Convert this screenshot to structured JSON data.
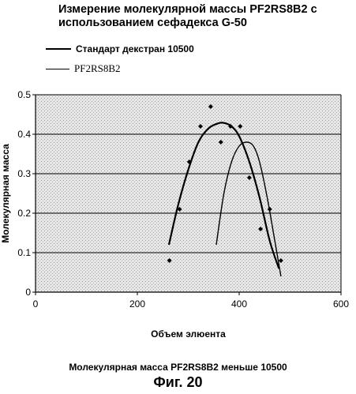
{
  "chart_data": {
    "type": "scatter",
    "title": "Измерение молекулярной массы PF2RS8B2 с\nиспользованием сефадекса G-50",
    "xlabel": "Объем элюента",
    "ylabel": "Молекулярная масса",
    "xlim": [
      0,
      600
    ],
    "ylim": [
      0,
      0.5
    ],
    "xticks": [
      0,
      200,
      400,
      600
    ],
    "yticks": [
      0,
      0.1,
      0.2,
      0.3,
      0.4,
      0.5
    ],
    "xtick_labels": [
      "0",
      "200",
      "400",
      "600"
    ],
    "ytick_labels": [
      "0",
      "0.1",
      "0.2",
      "0.3",
      "0.4",
      "0.5"
    ],
    "grid": true,
    "legend_position": "top-left",
    "points": {
      "x": [
        263,
        283,
        302,
        324,
        344,
        364,
        383,
        402,
        420,
        442,
        460,
        482
      ],
      "y": [
        0.08,
        0.21,
        0.33,
        0.42,
        0.47,
        0.38,
        0.42,
        0.42,
        0.29,
        0.16,
        0.21,
        0.08
      ]
    },
    "series": [
      {
        "name": "Стандарт декстран 10500",
        "style": "bold",
        "x": [
          262,
          280,
          300,
          320,
          340,
          360,
          372,
          385,
          400,
          420,
          440,
          460,
          478
        ],
        "y": [
          0.12,
          0.22,
          0.31,
          0.38,
          0.415,
          0.428,
          0.428,
          0.42,
          0.395,
          0.33,
          0.24,
          0.13,
          0.06
        ]
      },
      {
        "name": "PF2RS8B2",
        "style": "thin",
        "x": [
          355,
          370,
          385,
          400,
          415,
          428,
          440,
          455,
          470,
          482
        ],
        "y": [
          0.12,
          0.25,
          0.33,
          0.37,
          0.38,
          0.37,
          0.33,
          0.24,
          0.13,
          0.04
        ]
      }
    ]
  },
  "legend": {
    "items": [
      "Стандарт декстран 10500",
      "PF2RS8B2"
    ]
  },
  "caption": {
    "subtitle": "Молекулярная масса PF2RS8B2 меньше 10500",
    "figure": "Фиг. 20"
  }
}
